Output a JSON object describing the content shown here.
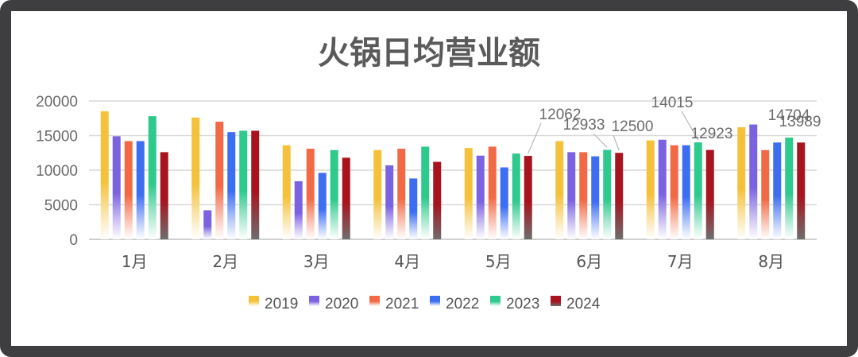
{
  "chart_data": {
    "type": "bar",
    "title": "火锅日均营业额",
    "categories": [
      "1月",
      "2月",
      "3月",
      "4月",
      "5月",
      "6月",
      "7月",
      "8月"
    ],
    "ylim": [
      0,
      20000
    ],
    "yticks": [
      "0",
      "5000",
      "10000",
      "15000",
      "20000"
    ],
    "grid": true,
    "legend_position": "bottom",
    "series": [
      {
        "name": "2019",
        "color": "#f5c13b",
        "values": [
          18500,
          17600,
          13600,
          12900,
          13200,
          14200,
          14300,
          16200
        ]
      },
      {
        "name": "2020",
        "color": "#7b62e0",
        "values": [
          14900,
          4200,
          8400,
          10700,
          12100,
          12600,
          14400,
          16600
        ]
      },
      {
        "name": "2021",
        "color": "#f26a45",
        "values": [
          14200,
          17000,
          13100,
          13100,
          13400,
          12600,
          13600,
          12900
        ]
      },
      {
        "name": "2022",
        "color": "#3d6ef2",
        "values": [
          14200,
          15500,
          9600,
          8800,
          10400,
          12000,
          13600,
          14000
        ]
      },
      {
        "name": "2023",
        "color": "#2dc98d",
        "values": [
          17800,
          15700,
          12900,
          13400,
          12400,
          12933,
          14015,
          14704
        ]
      },
      {
        "name": "2024",
        "color": "#a8141e",
        "values": [
          12600,
          15700,
          11800,
          11200,
          12062,
          12500,
          12923,
          13989
        ]
      }
    ],
    "annotations": [
      {
        "text": "12062",
        "category": "5月",
        "series": "2024"
      },
      {
        "text": "12933",
        "category": "6月",
        "series": "2023"
      },
      {
        "text": "12500",
        "category": "6月",
        "series": "2024"
      },
      {
        "text": "14015",
        "category": "7月",
        "series": "2023"
      },
      {
        "text": "12923",
        "category": "7月",
        "series": "2024"
      },
      {
        "text": "14704",
        "category": "8月",
        "series": "2023"
      },
      {
        "text": "13989",
        "category": "8月",
        "series": "2024"
      }
    ]
  }
}
